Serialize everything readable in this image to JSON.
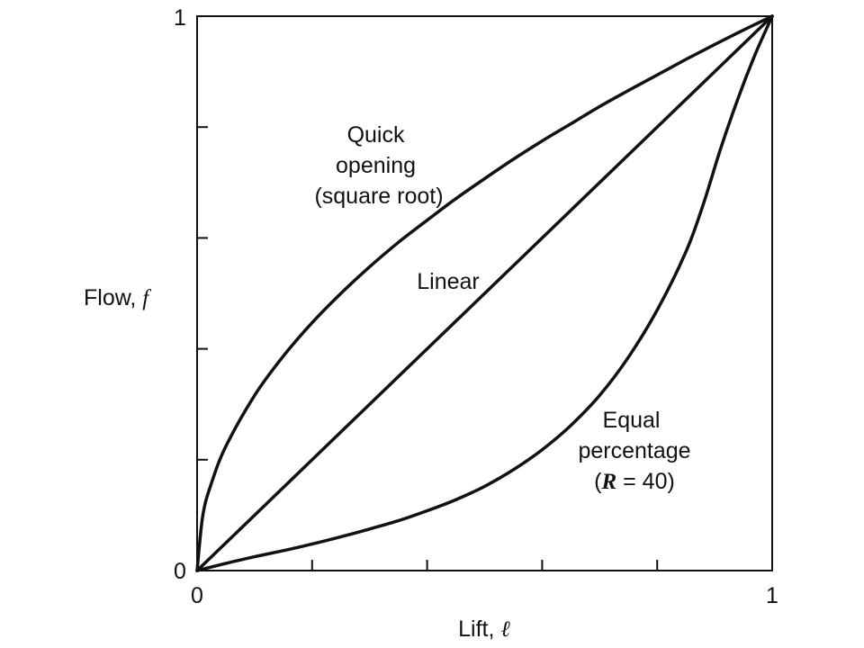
{
  "chart_data": {
    "type": "line",
    "xlabel": "Lift, ℓ",
    "xlabel_parts": {
      "text": "Lift, ",
      "var": "ℓ"
    },
    "ylabel": "Flow, f",
    "ylabel_parts": {
      "text": "Flow, ",
      "var": "f"
    },
    "xlim": [
      0,
      1
    ],
    "ylim": [
      0,
      1
    ],
    "x_tick_labels": {
      "start": "0",
      "end": "1"
    },
    "y_tick_labels": {
      "start": "0",
      "end": "1"
    },
    "x_minor_ticks": [
      0.2,
      0.4,
      0.6,
      0.8
    ],
    "y_minor_ticks": [
      0.2,
      0.4,
      0.6,
      0.8
    ],
    "grid": false,
    "series": [
      {
        "name": "Quick opening (square root)",
        "label_lines": [
          "Quick",
          "opening",
          "(square root)"
        ],
        "x": [
          0,
          0.01,
          0.025,
          0.05,
          0.1,
          0.15,
          0.2,
          0.25,
          0.3,
          0.35,
          0.4,
          0.45,
          0.5,
          0.55,
          0.6,
          0.65,
          0.7,
          0.75,
          0.8,
          0.85,
          0.9,
          0.95,
          1.0
        ],
        "y": [
          0,
          0.1,
          0.158,
          0.224,
          0.316,
          0.387,
          0.447,
          0.5,
          0.548,
          0.592,
          0.632,
          0.671,
          0.707,
          0.742,
          0.775,
          0.806,
          0.837,
          0.866,
          0.894,
          0.922,
          0.949,
          0.975,
          1.0
        ]
      },
      {
        "name": "Linear",
        "label_lines": [
          "Linear"
        ],
        "x": [
          0,
          1
        ],
        "y": [
          0,
          1
        ]
      },
      {
        "name": "Equal percentage (R = 40)",
        "label_lines": [
          "Equal",
          "percentage"
        ],
        "label_R": {
          "open": "(",
          "var": "R",
          "rest": " = 40)"
        },
        "x": [
          0,
          0.05,
          0.1,
          0.15,
          0.2,
          0.25,
          0.3,
          0.35,
          0.4,
          0.45,
          0.5,
          0.55,
          0.6,
          0.65,
          0.7,
          0.75,
          0.8,
          0.85,
          0.88,
          0.91,
          0.94,
          0.97,
          1.0
        ],
        "y": [
          0,
          0.013,
          0.025,
          0.036,
          0.048,
          0.061,
          0.075,
          0.09,
          0.108,
          0.128,
          0.152,
          0.182,
          0.218,
          0.262,
          0.316,
          0.385,
          0.47,
          0.575,
          0.66,
          0.76,
          0.85,
          0.93,
          1.0
        ]
      }
    ]
  }
}
